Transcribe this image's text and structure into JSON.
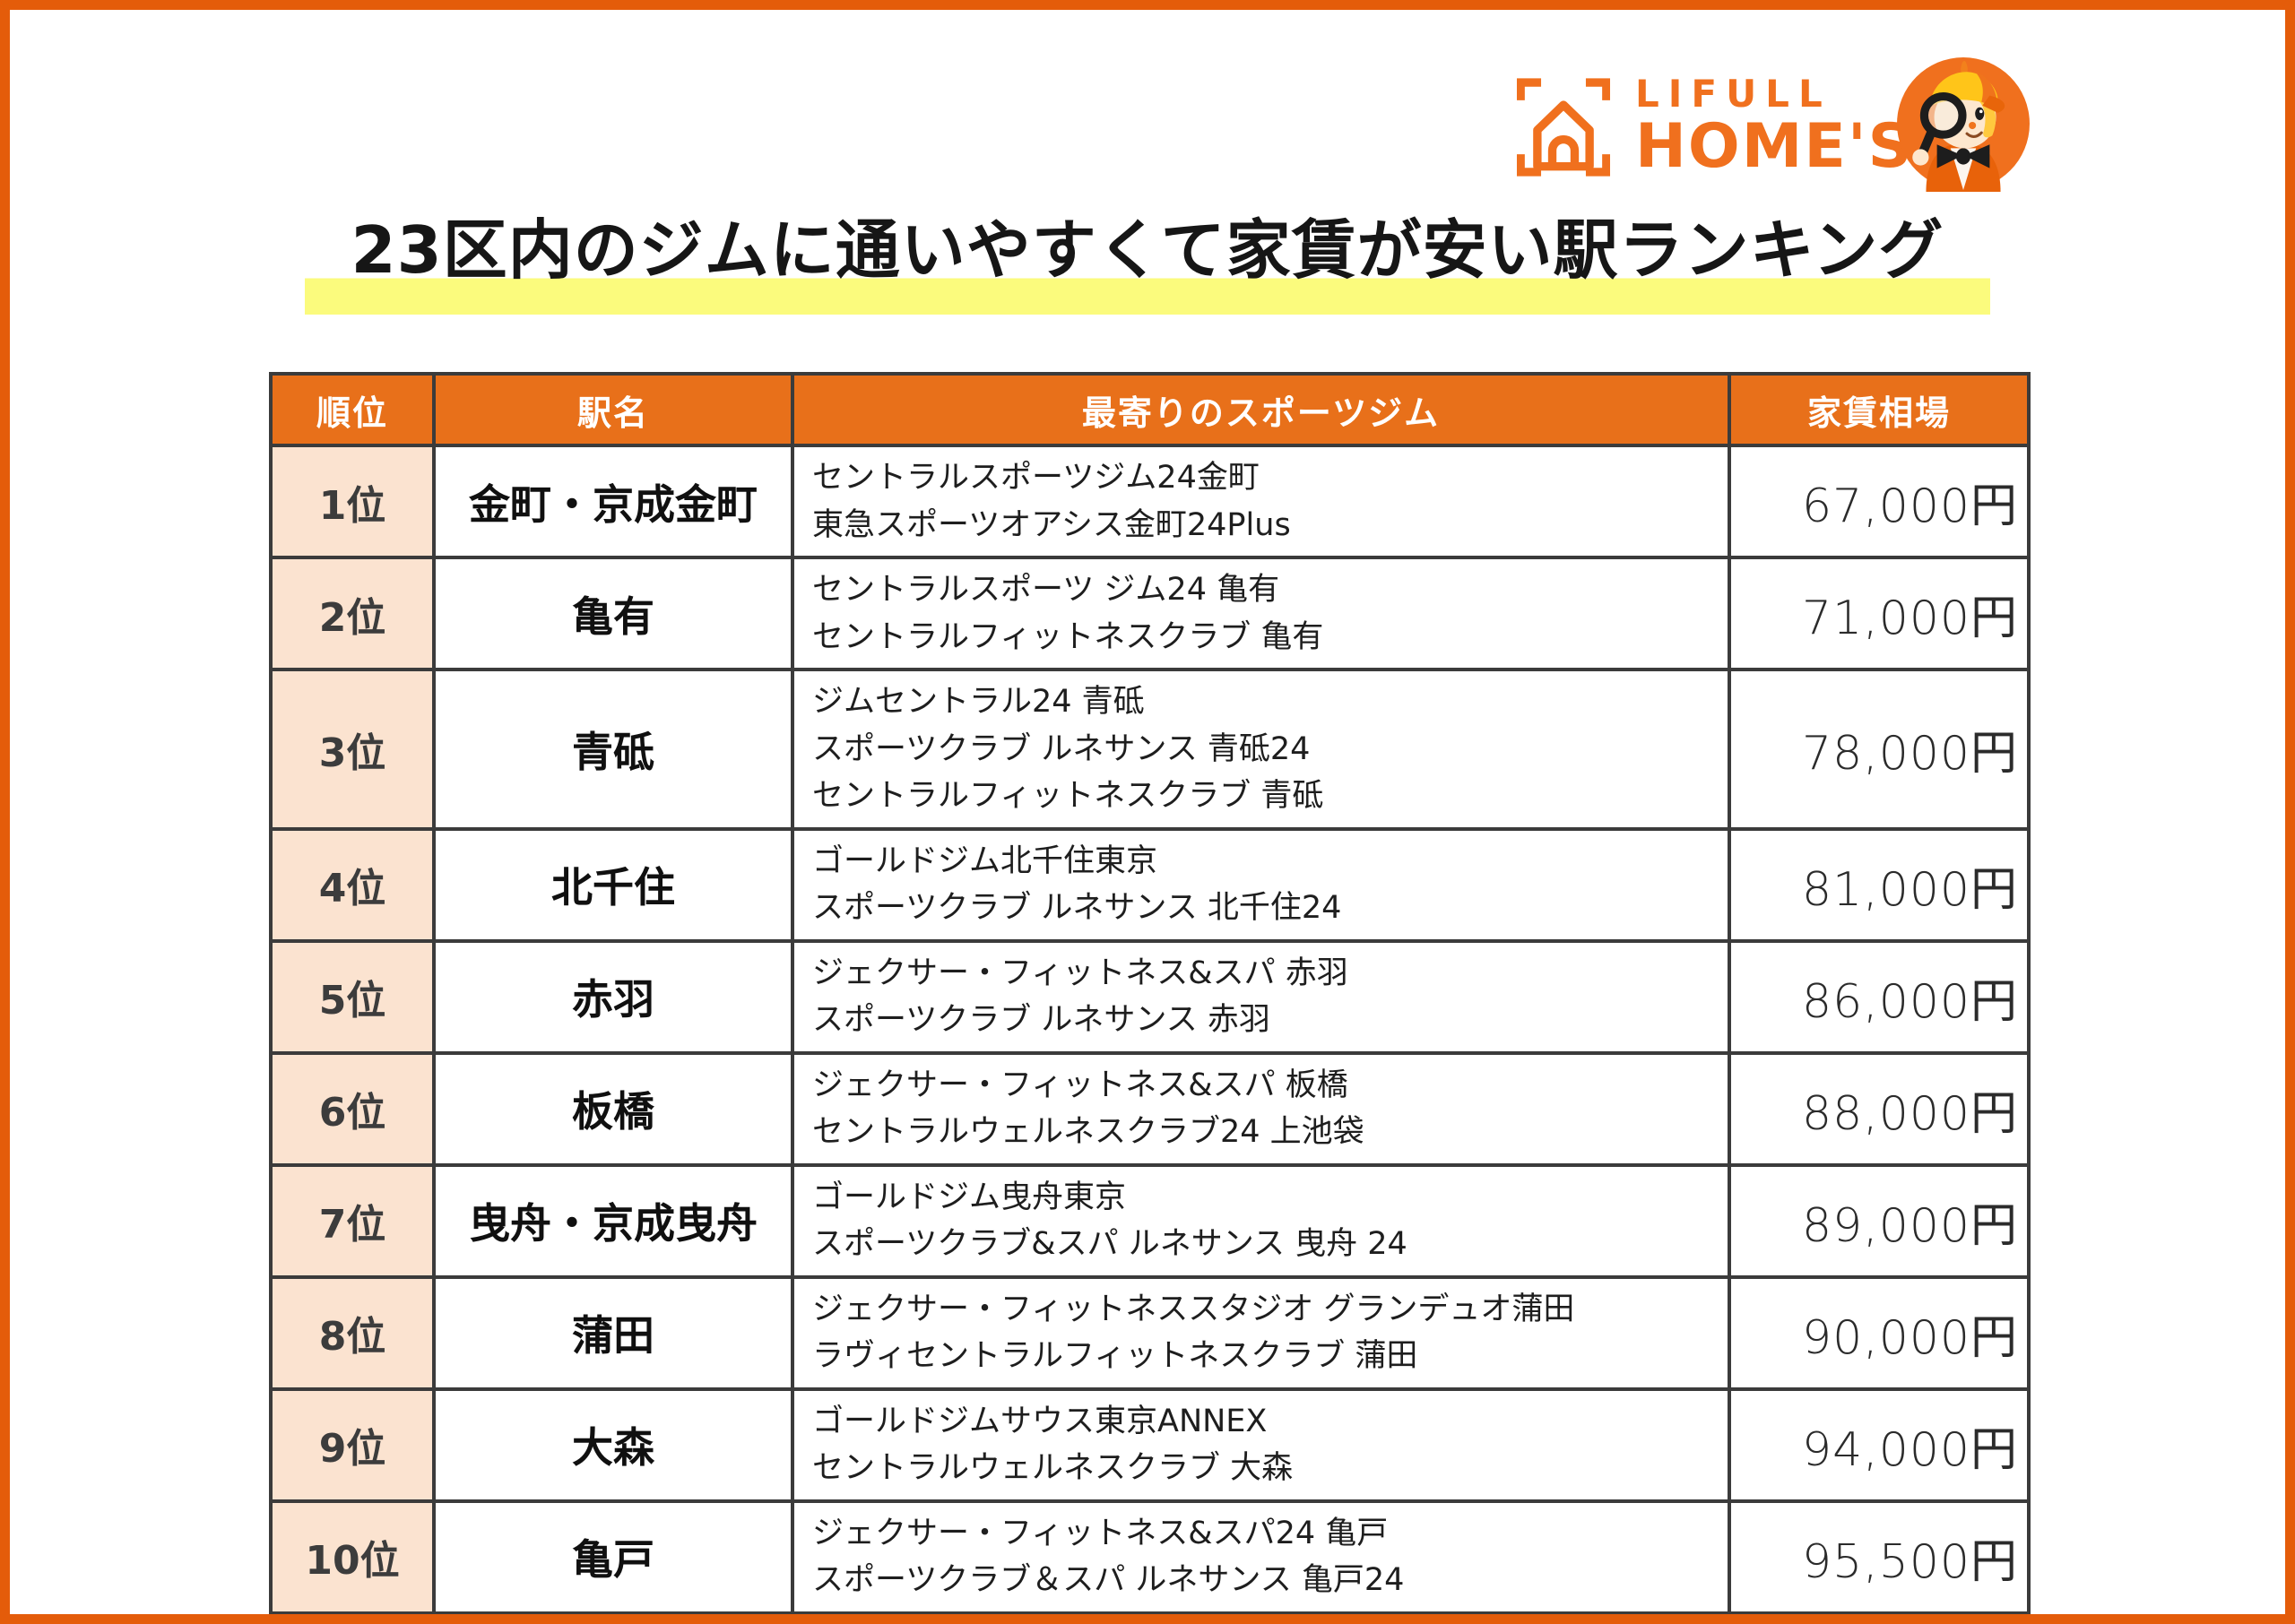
{
  "logo": {
    "line1": "LIFULL",
    "line2": "HOME'S"
  },
  "title": {
    "text": "23区内のジムに通いやすくて家賃が安い駅ランキング"
  },
  "colors": {
    "brand_orange": "#F0701E",
    "frame_orange": "#E45C0A",
    "header_orange": "#E8701A",
    "rank_cell_peach": "#FBE3D0",
    "highlight_yellow": "#FBFB7D",
    "border_dark": "#3B3B3B"
  },
  "table": {
    "headers": [
      "順位",
      "駅名",
      "最寄りのスポーツジム",
      "家賃相場"
    ],
    "rows": [
      {
        "rank": "1位",
        "station": "金町・京成金町",
        "gyms": [
          "セントラルスポーツジム24金町",
          "東急スポーツオアシス金町24Plus"
        ],
        "rent": "67,000円"
      },
      {
        "rank": "2位",
        "station": "亀有",
        "gyms": [
          "セントラルスポーツ ジム24 亀有",
          "セントラルフィットネスクラブ 亀有"
        ],
        "rent": "71,000円"
      },
      {
        "rank": "3位",
        "station": "青砥",
        "gyms": [
          "ジムセントラル24 青砥",
          "スポーツクラブ ルネサンス 青砥24",
          "セントラルフィットネスクラブ 青砥"
        ],
        "rent": "78,000円"
      },
      {
        "rank": "4位",
        "station": "北千住",
        "gyms": [
          "ゴールドジム北千住東京",
          "スポーツクラブ ルネサンス 北千住24"
        ],
        "rent": "81,000円"
      },
      {
        "rank": "5位",
        "station": "赤羽",
        "gyms": [
          "ジェクサー・フィットネス&スパ 赤羽",
          "スポーツクラブ ルネサンス 赤羽"
        ],
        "rent": "86,000円"
      },
      {
        "rank": "6位",
        "station": "板橋",
        "gyms": [
          "ジェクサー・フィットネス&スパ 板橋",
          "セントラルウェルネスクラブ24 上池袋"
        ],
        "rent": "88,000円"
      },
      {
        "rank": "7位",
        "station": "曳舟・京成曳舟",
        "gyms": [
          "ゴールドジム曳舟東京",
          "スポーツクラブ&スパ ルネサンス 曳舟 24"
        ],
        "rent": "89,000円"
      },
      {
        "rank": "8位",
        "station": "蒲田",
        "gyms": [
          "ジェクサー・フィットネススタジオ グランデュオ蒲田",
          "ラヴィセントラルフィットネスクラブ 蒲田"
        ],
        "rent": "90,000円"
      },
      {
        "rank": "9位",
        "station": "大森",
        "gyms": [
          "ゴールドジムサウス東京ANNEX",
          "セントラルウェルネスクラブ 大森"
        ],
        "rent": "94,000円"
      },
      {
        "rank": "10位",
        "station": "亀戸",
        "gyms": [
          "ジェクサー・フィットネス&スパ24 亀戸",
          "スポーツクラブ＆スパ ルネサンス 亀戸24"
        ],
        "rent": "95,500円"
      }
    ]
  },
  "chart_data": {
    "type": "table",
    "title": "23区内のジムに通いやすくて家賃が安い駅ランキング",
    "columns": [
      "順位",
      "駅名",
      "最寄りのスポーツジム",
      "家賃相場"
    ],
    "rows": [
      [
        "1位",
        "金町・京成金町",
        "セントラルスポーツジム24金町 / 東急スポーツオアシス金町24Plus",
        "67,000円"
      ],
      [
        "2位",
        "亀有",
        "セントラルスポーツ ジム24 亀有 / セントラルフィットネスクラブ 亀有",
        "71,000円"
      ],
      [
        "3位",
        "青砥",
        "ジムセントラル24 青砥 / スポーツクラブ ルネサンス 青砥24 / セントラルフィットネスクラブ 青砥",
        "78,000円"
      ],
      [
        "4位",
        "北千住",
        "ゴールドジム北千住東京 / スポーツクラブ ルネサンス 北千住24",
        "81,000円"
      ],
      [
        "5位",
        "赤羽",
        "ジェクサー・フィットネス&スパ 赤羽 / スポーツクラブ ルネサンス 赤羽",
        "86,000円"
      ],
      [
        "6位",
        "板橋",
        "ジェクサー・フィットネス&スパ 板橋 / セントラルウェルネスクラブ24 上池袋",
        "88,000円"
      ],
      [
        "7位",
        "曳舟・京成曳舟",
        "ゴールドジム曳舟東京 / スポーツクラブ&スパ ルネサンス 曳舟 24",
        "89,000円"
      ],
      [
        "8位",
        "蒲田",
        "ジェクサー・フィットネススタジオ グランデュオ蒲田 / ラヴィセントラルフィットネスクラブ 蒲田",
        "90,000円"
      ],
      [
        "9位",
        "大森",
        "ゴールドジムサウス東京ANNEX / セントラルウェルネスクラブ 大森",
        "94,000円"
      ],
      [
        "10位",
        "亀戸",
        "ジェクサー・フィットネス&スパ24 亀戸 / スポーツクラブ＆スパ ルネサンス 亀戸24",
        "95,500円"
      ]
    ],
    "rent_values_yen": [
      67000,
      71000,
      78000,
      81000,
      86000,
      88000,
      89000,
      90000,
      94000,
      95500
    ]
  }
}
